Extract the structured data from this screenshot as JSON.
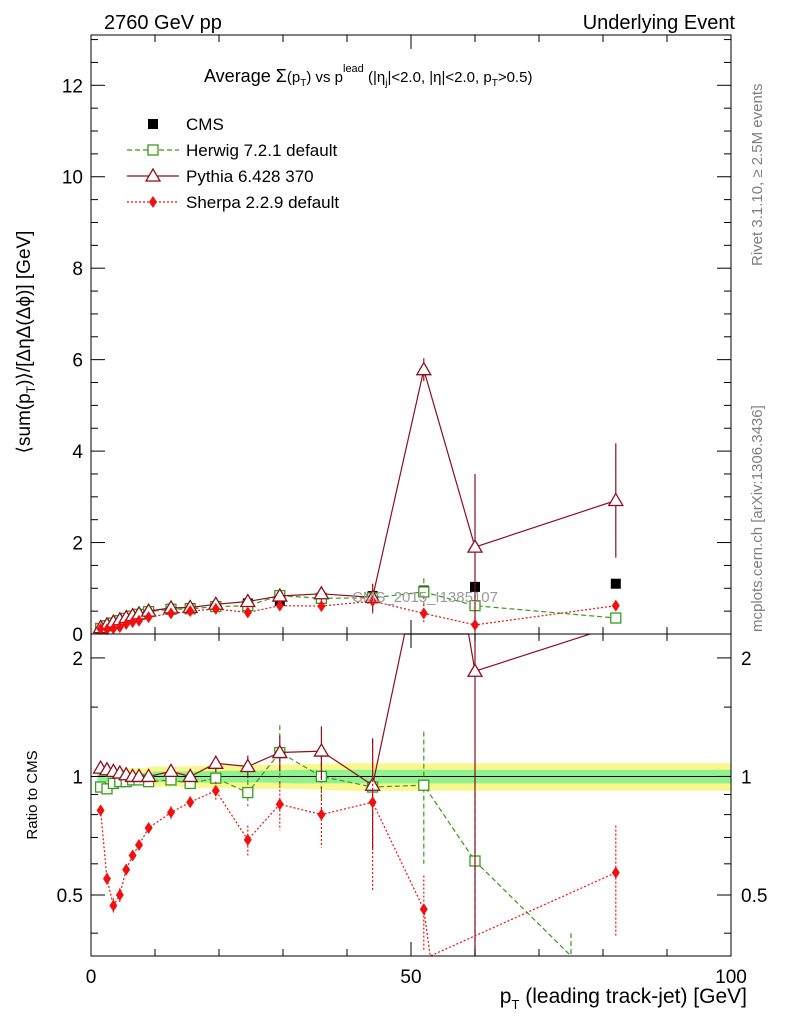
{
  "header": {
    "left": "2760 GeV pp",
    "right": "Underlying Event"
  },
  "side_texts": {
    "rivet": "Rivet 3.1.10, ≥ 2.5M events",
    "mcplots": "mcplots.cern.ch [arXiv:1306.3436]"
  },
  "watermark": "CMS_2015_I1385107",
  "chart_data": [
    {
      "type": "line",
      "title_parts": {
        "a": "Average ",
        "sigma": "Σ",
        "b": "(p",
        "sub_t": "T",
        "c": ") vs p",
        "sup_lead": "lead",
        "d": " (|η",
        "sub_j": "j",
        "e": "|<2.0, |η|<2.0, p",
        "sub_t2": "T",
        "f": ">0.5)"
      },
      "ylabel": "⟨sum(pT)⟩/[ΔηΔ(Δϕ)] [GeV]",
      "ylabel_parts": {
        "a": "⟨sum(p",
        "sub": "T",
        "b": ")⟩/[ΔηΔ(Δϕ)] [GeV]"
      },
      "xlim": [
        0,
        100
      ],
      "ylim": [
        0,
        13.1
      ],
      "yticks": [
        0,
        2,
        4,
        6,
        8,
        10,
        12
      ],
      "ytick_labels": [
        "0",
        "2",
        "4",
        "6",
        "8",
        "10",
        "12"
      ],
      "legend_position": "top-left",
      "series": [
        {
          "name": "CMS",
          "color": "#000000",
          "marker": "filled-square",
          "x": [
            1.5,
            2.5,
            3.5,
            4.5,
            5.5,
            6.5,
            7.5,
            9,
            12.5,
            15.5,
            19.5,
            24.5,
            29.5,
            36,
            44,
            52,
            60,
            82
          ],
          "y": [
            0.13,
            0.19,
            0.25,
            0.3,
            0.35,
            0.39,
            0.43,
            0.5,
            0.55,
            0.57,
            0.6,
            0.67,
            0.72,
            0.77,
            0.83,
            0.95,
            1.03,
            1.1
          ],
          "yerr": [
            0,
            0,
            0,
            0,
            0,
            0,
            0,
            0,
            0,
            0,
            0,
            0,
            0,
            0,
            0,
            0,
            0,
            0
          ]
        },
        {
          "name": "Herwig 7.2.1 default",
          "color": "#3a9a1b",
          "marker": "open-square",
          "dash": "dashed",
          "x": [
            1.5,
            2.5,
            3.5,
            4.5,
            5.5,
            6.5,
            7.5,
            9,
            12.5,
            15.5,
            19.5,
            24.5,
            29.5,
            36,
            44,
            52,
            60,
            82
          ],
          "y": [
            0.12,
            0.18,
            0.24,
            0.29,
            0.34,
            0.39,
            0.43,
            0.49,
            0.54,
            0.55,
            0.6,
            0.62,
            0.84,
            0.78,
            0.79,
            0.92,
            0.62,
            0.35
          ],
          "yerr": [
            0.01,
            0.01,
            0.01,
            0.01,
            0.01,
            0.01,
            0.02,
            0.02,
            0.03,
            0.03,
            0.04,
            0.05,
            0.15,
            0.1,
            0.3,
            0.3,
            0.3,
            0.1
          ]
        },
        {
          "name": "Pythia 6.428 370",
          "color": "#8b0f1f",
          "marker": "open-triangle",
          "dash": "solid",
          "x": [
            1.5,
            2.5,
            3.5,
            4.5,
            5.5,
            6.5,
            7.5,
            9,
            12.5,
            15.5,
            19.5,
            24.5,
            29.5,
            36,
            44,
            52,
            60,
            82
          ],
          "y": [
            0.14,
            0.2,
            0.26,
            0.31,
            0.36,
            0.4,
            0.44,
            0.5,
            0.57,
            0.58,
            0.65,
            0.71,
            0.83,
            0.88,
            0.8,
            5.78,
            1.9,
            2.92
          ],
          "yerr": [
            0.01,
            0.01,
            0.01,
            0.01,
            0.01,
            0.01,
            0.02,
            0.02,
            0.03,
            0.03,
            0.05,
            0.06,
            0.1,
            0.15,
            0.3,
            0.25,
            1.6,
            1.25
          ]
        },
        {
          "name": "Sherpa 2.2.9 default",
          "color": "#f01010",
          "marker": "filled-diamond",
          "dash": "dotted",
          "x": [
            1.5,
            2.5,
            3.5,
            4.5,
            5.5,
            6.5,
            7.5,
            9,
            12.5,
            15.5,
            19.5,
            24.5,
            29.5,
            36,
            44,
            52,
            60,
            82
          ],
          "y": [
            0.11,
            0.1,
            0.12,
            0.15,
            0.22,
            0.26,
            0.29,
            0.37,
            0.45,
            0.5,
            0.55,
            0.47,
            0.62,
            0.61,
            0.72,
            0.45,
            0.2,
            0.62
          ],
          "yerr": [
            0.01,
            0.01,
            0.01,
            0.01,
            0.01,
            0.01,
            0.02,
            0.02,
            0.03,
            0.04,
            0.05,
            0.05,
            0.1,
            0.12,
            0.3,
            0.2,
            0.2,
            0.1
          ]
        }
      ]
    },
    {
      "type": "line",
      "ylabel": "Ratio to CMS",
      "xlabel": "(leading track-jet) [GeV]",
      "xlabel_parts": {
        "a": "p",
        "sub": "T",
        "b": " (leading track-jet) [GeV]"
      },
      "xlim": [
        0,
        100
      ],
      "ylim": [
        0.35,
        2.3
      ],
      "ylog": true,
      "xticks": [
        0,
        50,
        100
      ],
      "xtick_labels": [
        "0",
        "50",
        "100"
      ],
      "yticks": [
        0.5,
        1,
        2
      ],
      "ytick_labels": [
        "0.5",
        "1",
        "2"
      ],
      "band": {
        "x": [
          1,
          2,
          3,
          4,
          5,
          6,
          7,
          8,
          10,
          14,
          17,
          22,
          27,
          32,
          40,
          48,
          56,
          64,
          100
        ],
        "stat_lo": [
          0.97,
          0.97,
          0.97,
          0.97,
          0.97,
          0.97,
          0.97,
          0.97,
          0.97,
          0.965,
          0.965,
          0.965,
          0.965,
          0.96,
          0.96,
          0.96,
          0.96,
          0.96,
          0.96
        ],
        "stat_hi": [
          1.02,
          1.02,
          1.02,
          1.02,
          1.02,
          1.02,
          1.02,
          1.02,
          1.03,
          1.03,
          1.03,
          1.035,
          1.035,
          1.04,
          1.04,
          1.04,
          1.04,
          1.04,
          1.04
        ],
        "total_lo": [
          0.95,
          0.95,
          0.95,
          0.95,
          0.95,
          0.95,
          0.95,
          0.95,
          0.94,
          0.94,
          0.935,
          0.935,
          0.93,
          0.93,
          0.92,
          0.92,
          0.92,
          0.92,
          0.92
        ],
        "total_hi": [
          1.04,
          1.04,
          1.04,
          1.045,
          1.045,
          1.05,
          1.05,
          1.05,
          1.06,
          1.06,
          1.065,
          1.07,
          1.07,
          1.075,
          1.08,
          1.08,
          1.08,
          1.08,
          1.08
        ],
        "stat_color": "#8ff28f",
        "total_color": "#fbf78f"
      },
      "series": [
        {
          "name": "Herwig 7.2.1 default",
          "color": "#3a9a1b",
          "marker": "open-square",
          "dash": "dashed",
          "x": [
            1.5,
            2.5,
            3.5,
            4.5,
            5.5,
            6.5,
            7.5,
            9,
            12.5,
            15.5,
            19.5,
            24.5,
            29.5,
            36,
            44,
            52,
            60,
            75
          ],
          "y": [
            0.94,
            0.93,
            0.96,
            0.97,
            0.97,
            0.98,
            0.98,
            0.97,
            0.98,
            0.96,
            0.99,
            0.91,
            1.15,
            1.0,
            0.94,
            0.95,
            0.61,
            0.35
          ],
          "yerr": [
            0.01,
            0.01,
            0.01,
            0.01,
            0.02,
            0.02,
            0.02,
            0.02,
            0.03,
            0.03,
            0.05,
            0.07,
            0.2,
            0.14,
            0.3,
            0.35,
            0.3,
            0.05
          ]
        },
        {
          "name": "Pythia 6.428 370",
          "color": "#8b0f1f",
          "marker": "open-triangle",
          "dash": "solid",
          "x": [
            1.5,
            2.5,
            3.5,
            4.5,
            5.5,
            6.5,
            7.5,
            9,
            12.5,
            15.5,
            19.5,
            24.5,
            29.5,
            36,
            44,
            49,
            59,
            60,
            78
          ],
          "y": [
            1.05,
            1.04,
            1.03,
            1.02,
            1.01,
            1.0,
            1.0,
            1.0,
            1.03,
            1.0,
            1.08,
            1.06,
            1.15,
            1.16,
            0.95,
            2.3,
            2.3,
            1.85,
            2.3
          ],
          "yerr": [
            0.01,
            0.01,
            0.01,
            0.01,
            0.01,
            0.02,
            0.02,
            0.02,
            0.03,
            0.03,
            0.05,
            0.07,
            0.12,
            0.18,
            0.3,
            0,
            0,
            1.5,
            0
          ]
        },
        {
          "name": "Sherpa 2.2.9 default",
          "color": "#f01010",
          "marker": "filled-diamond",
          "dash": "dotted",
          "x": [
            1.5,
            2.5,
            3.5,
            4.5,
            5.5,
            6.5,
            7.5,
            9,
            12.5,
            15.5,
            19.5,
            24.5,
            29.5,
            36,
            44,
            52,
            53,
            82
          ],
          "y": [
            0.82,
            0.55,
            0.47,
            0.5,
            0.58,
            0.63,
            0.67,
            0.74,
            0.81,
            0.86,
            0.92,
            0.69,
            0.85,
            0.8,
            0.86,
            0.46,
            0.35,
            0.57
          ],
          "yerr": [
            0.01,
            0.02,
            0.02,
            0.02,
            0.02,
            0.02,
            0.02,
            0.02,
            0.03,
            0.03,
            0.05,
            0.06,
            0.12,
            0.14,
            0.35,
            0.1,
            0,
            0.18
          ]
        }
      ]
    }
  ]
}
